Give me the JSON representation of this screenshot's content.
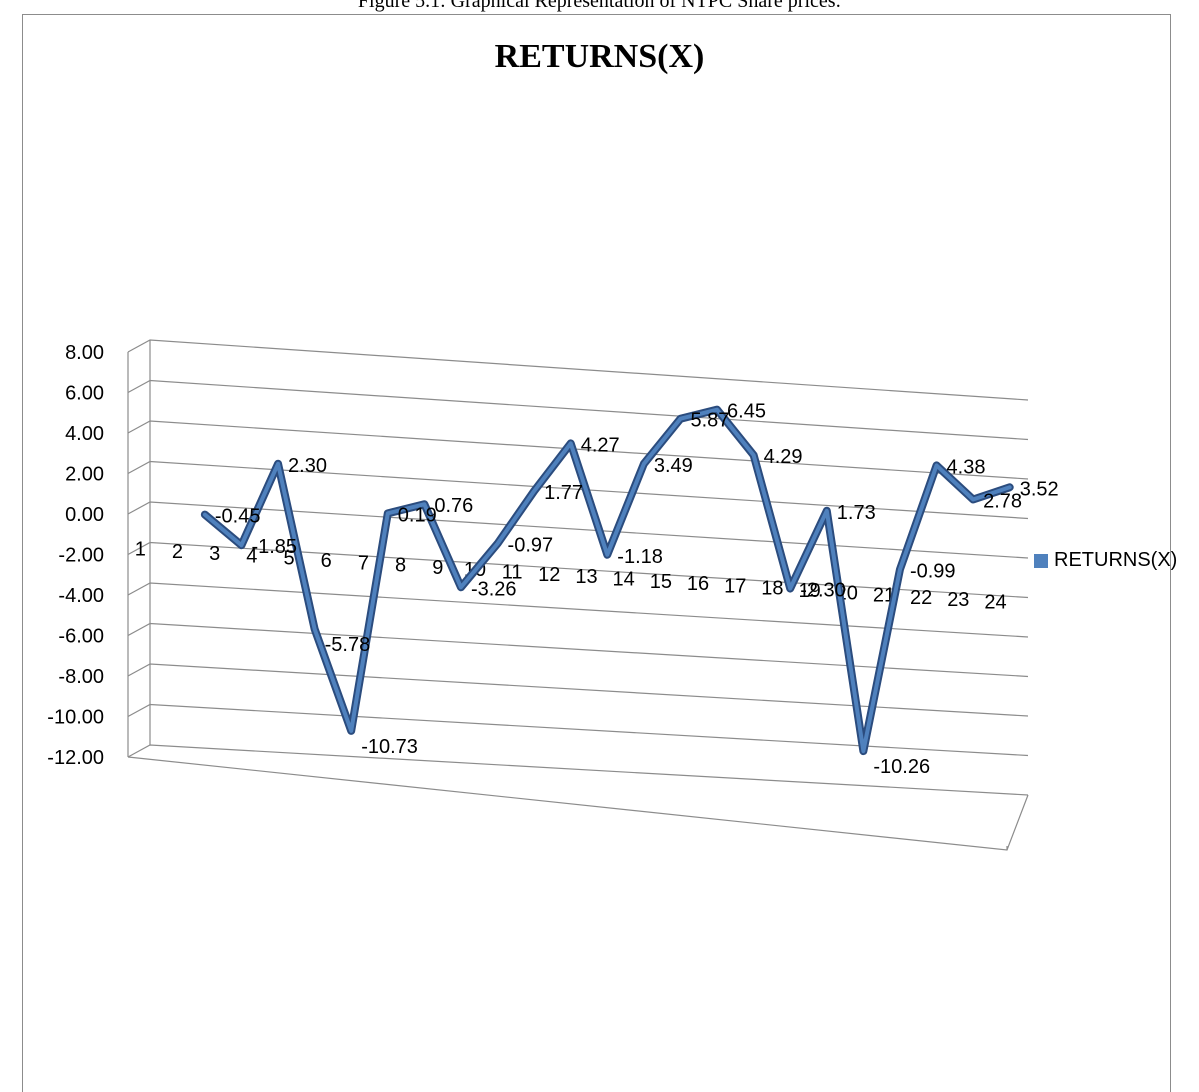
{
  "caption": "Figure 5.1: Graphical Representation of NTPC Share prices:",
  "colors": {
    "series": "#4f81bd",
    "series_edge": "#2b4c7e",
    "grid": "#8c8c8c"
  },
  "chart_data": {
    "type": "line",
    "title": "RETURNS(X)",
    "categories": [
      "1",
      "2",
      "3",
      "4",
      "5",
      "6",
      "7",
      "8",
      "9",
      "10",
      "11",
      "12",
      "13",
      "14",
      "15",
      "16",
      "17",
      "18",
      "19",
      "20",
      "21",
      "22",
      "23",
      "24"
    ],
    "y_ticks": [
      "8.00",
      "6.00",
      "4.00",
      "2.00",
      "0.00",
      "-2.00",
      "-4.00",
      "-6.00",
      "-8.00",
      "-10.00",
      "-12.00"
    ],
    "ylim": [
      -12,
      8
    ],
    "grid": true,
    "legend_position": "right",
    "series": [
      {
        "name": "RETURNS(X)",
        "values": [
          null,
          -0.45,
          -1.85,
          2.3,
          -5.78,
          -10.73,
          0.19,
          0.76,
          -3.26,
          -0.97,
          1.77,
          4.27,
          -1.18,
          3.49,
          5.87,
          6.45,
          4.29,
          -2.3,
          1.73,
          -10.26,
          -0.99,
          4.38,
          2.78,
          3.52
        ],
        "labels": [
          "",
          "-0.45",
          "-1.85",
          "2.30",
          "-5.78",
          "-10.73",
          "0.19",
          "0.76",
          "-3.26",
          "-0.97",
          "1.77",
          "4.27",
          "-1.18",
          "3.49",
          "5.87",
          "6.45",
          "4.29",
          "-2.30",
          "1.73",
          "-10.26",
          "-0.99",
          "4.38",
          "2.78",
          "3.52"
        ]
      }
    ]
  }
}
